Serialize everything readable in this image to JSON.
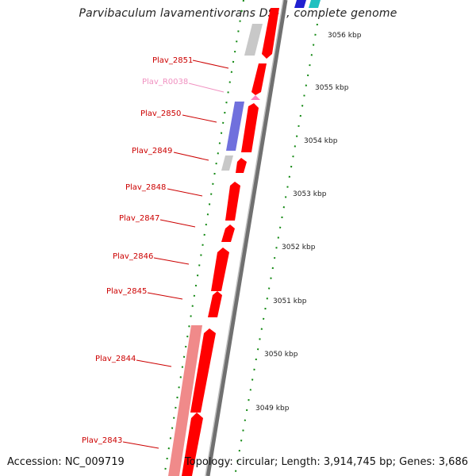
{
  "title": "Parvibaculum lavamentivorans DS-1, complete genome",
  "accession": "Accession: NC_009719",
  "topology": "Topology: circular; Length: 3,914,745 bp; Genes: 3,686",
  "colors": {
    "cds_forward": "#ff0000",
    "cds_reverse_pink": "#f08080",
    "gray_feature": "#c8c8c8",
    "blue_feature": "#7070dd",
    "rna": "#ff80c0",
    "label_red": "#cc0000",
    "label_pink": "#f090c0",
    "ticks_green": "#006600",
    "backbone": "#888888"
  },
  "scale_ticks": [
    {
      "label": "3056 kbp"
    },
    {
      "label": "3055 kbp"
    },
    {
      "label": "3054 kbp"
    },
    {
      "label": "3053 kbp"
    },
    {
      "label": "3052 kbp"
    },
    {
      "label": "3051 kbp"
    },
    {
      "label": "3050 kbp"
    },
    {
      "label": "3049 kbp"
    }
  ],
  "gene_labels": [
    {
      "text": "Plav_2851",
      "color": "#cc0000"
    },
    {
      "text": "Plav_R0038",
      "color": "#f090c0"
    },
    {
      "text": "Plav_2850",
      "color": "#cc0000"
    },
    {
      "text": "Plav_2849",
      "color": "#cc0000"
    },
    {
      "text": "Plav_2848",
      "color": "#cc0000"
    },
    {
      "text": "Plav_2847",
      "color": "#cc0000"
    },
    {
      "text": "Plav_2846",
      "color": "#cc0000"
    },
    {
      "text": "Plav_2845",
      "color": "#cc0000"
    },
    {
      "text": "Plav_2844",
      "color": "#cc0000"
    },
    {
      "text": "Plav_2843",
      "color": "#cc0000"
    }
  ]
}
